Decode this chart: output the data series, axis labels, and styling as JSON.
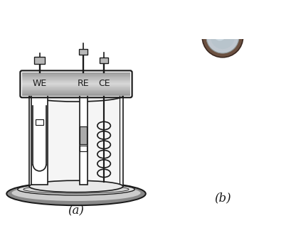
{
  "fig_width": 4.1,
  "fig_height": 3.52,
  "dpi": 100,
  "background_color": "#ffffff",
  "label_a": "(a)",
  "label_b": "(b)",
  "label_fontsize": 12,
  "we_label": "WE",
  "re_label": "RE",
  "ce_label": "CE",
  "label_text_fontsize": 9,
  "line_color": "#1a1a1a",
  "line_width": 1.2
}
